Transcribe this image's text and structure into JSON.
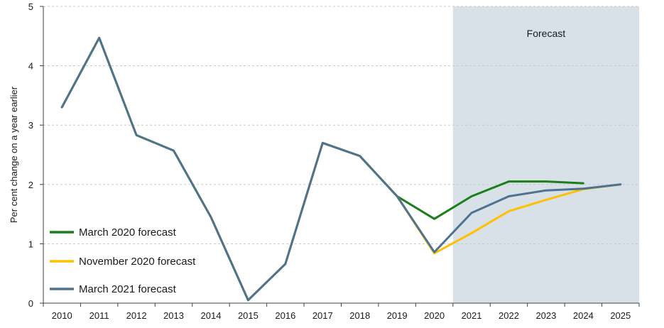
{
  "chart_data": {
    "type": "line",
    "title": "",
    "xlabel": "",
    "ylabel": "Per cent change on a year earlier",
    "ylim": [
      0,
      5
    ],
    "yticks": [
      0,
      1,
      2,
      3,
      4,
      5
    ],
    "x": [
      "2010",
      "2011",
      "2012",
      "2013",
      "2014",
      "2015",
      "2016",
      "2017",
      "2018",
      "2019",
      "2020",
      "2021",
      "2022",
      "2023",
      "2024",
      "2025"
    ],
    "grid": "horizontal dashed",
    "legend": "bottom-left",
    "forecast_region": {
      "label": "Forecast",
      "from": "2020.5",
      "to": "2025.5",
      "color": "#d9e1e8"
    },
    "series": [
      {
        "name": "March 2020 forecast",
        "color": "#1a7f1a",
        "values": [
          3.3,
          4.47,
          2.83,
          2.57,
          1.45,
          0.05,
          0.66,
          2.7,
          2.48,
          1.8,
          1.42,
          1.8,
          2.05,
          2.05,
          2.02,
          null
        ]
      },
      {
        "name": "November 2020 forecast",
        "color": "#ffc000",
        "values": [
          3.3,
          4.47,
          2.83,
          2.57,
          1.45,
          0.05,
          0.66,
          2.7,
          2.48,
          1.8,
          0.84,
          1.18,
          1.55,
          1.74,
          1.92,
          2.0
        ]
      },
      {
        "name": "March 2021 forecast",
        "color": "#4e7390",
        "values": [
          3.3,
          4.47,
          2.83,
          2.57,
          1.45,
          0.05,
          0.66,
          2.7,
          2.48,
          1.8,
          0.86,
          1.52,
          1.8,
          1.9,
          1.93,
          2.0
        ]
      }
    ]
  }
}
